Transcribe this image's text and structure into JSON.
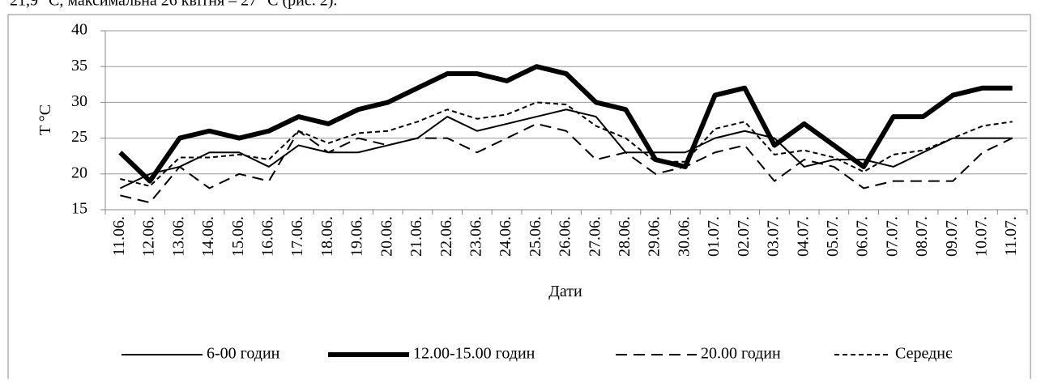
{
  "header": {
    "text": "21,9 °С, максимальна 26 квітня – 27 °С (рис. 2)."
  },
  "chart_data": {
    "type": "line",
    "x_label": "Дати",
    "y_label": "T °C",
    "categories": [
      "11.06.",
      "12.06.",
      "13.06.",
      "14.06.",
      "15.06.",
      "16.06.",
      "17.06.",
      "18.06.",
      "19.06.",
      "20.06.",
      "21.06.",
      "22.06.",
      "23.06.",
      "24.06.",
      "25.06.",
      "26.06.",
      "27.06.",
      "28.06.",
      "29.06.",
      "30.06.",
      "01.07.",
      "02.07.",
      "03.07.",
      "04.07.",
      "05.07.",
      "06.07.",
      "07.07.",
      "08.07.",
      "09.07.",
      "10.07.",
      "11.07."
    ],
    "series": [
      {
        "name": "6-00 годин",
        "color": "#000000",
        "values": [
          18,
          20,
          21,
          23,
          23,
          21,
          24,
          23,
          23,
          24,
          25,
          28,
          26,
          27,
          28,
          29,
          28,
          23,
          23,
          23,
          25,
          26,
          25,
          21,
          22,
          22,
          21,
          23,
          25,
          25,
          25
        ]
      },
      {
        "name": "12.00-15.00 годин",
        "color": "#000000",
        "values": [
          23,
          19,
          25,
          26,
          25,
          26,
          28,
          27,
          29,
          30,
          32,
          34,
          34,
          33,
          35,
          34,
          30,
          29,
          22,
          21,
          31,
          32,
          24,
          27,
          24,
          21,
          28,
          28,
          31,
          32,
          32
        ]
      },
      {
        "name": "20.00 годин",
        "color": "#000000",
        "values": [
          17,
          16,
          21,
          18,
          20,
          19,
          26,
          23,
          25,
          24,
          25,
          25,
          23,
          25,
          27,
          26,
          22,
          23,
          20,
          21,
          23,
          24,
          19,
          22,
          21,
          18,
          19,
          19,
          19,
          23,
          25
        ]
      },
      {
        "name": "Середнє",
        "color": "#000000",
        "values": [
          19.3,
          18.3,
          22.3,
          22.3,
          22.7,
          22,
          26,
          24.3,
          25.7,
          26,
          27.3,
          29,
          27.7,
          28.3,
          30,
          29.7,
          26.7,
          25,
          21.7,
          21.7,
          26.3,
          27.3,
          22.7,
          23.3,
          22.3,
          20.3,
          22.7,
          23.3,
          25,
          26.7,
          27.3
        ]
      }
    ],
    "ylim": [
      15,
      40
    ],
    "yticks": [
      15,
      20,
      25,
      30,
      35,
      40
    ],
    "grid": true,
    "legend": "bottom"
  }
}
